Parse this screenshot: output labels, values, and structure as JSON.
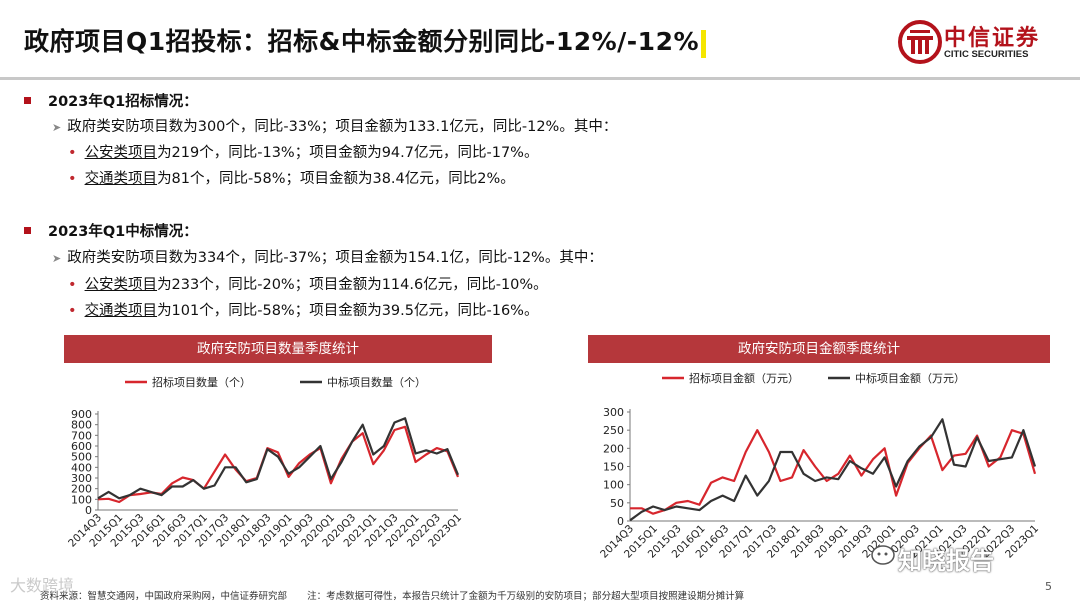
{
  "header": {
    "title": "政府项目Q1招投标：招标&中标金额分别同比-12%/-12%",
    "logo_cn": "中信证券",
    "logo_en": "CITIC SECURITIES",
    "brand_color": "#b3121b"
  },
  "section1": {
    "heading": "2023年Q1招标情况：",
    "main": "政府类安防项目数为300个，同比-33%；项目金额为133.1亿元，同比-12%。其中：",
    "b1_label": "公安类项目",
    "b1_rest": "为219个，同比-13%；项目金额为94.7亿元，同比-17%。",
    "b2_label": "交通类项目",
    "b2_rest": "为81个，同比-58%；项目金额为38.4亿元，同比2%。"
  },
  "section2": {
    "heading": "2023年Q1中标情况：",
    "main": "政府类安防项目数为334个，同比-37%；项目金额为154.1亿，同比-12%。其中：",
    "b1_label": "公安类项目",
    "b1_rest": "为233个，同比-20%；项目金额为114.6亿元，同比-10%。",
    "b2_label": "交通类项目",
    "b2_rest": "为101个，同比-58%；项目金额为39.5亿元，同比-16%。"
  },
  "chart_data": [
    {
      "type": "line",
      "title": "政府安防项目数量季度统计",
      "ylim": [
        0,
        900
      ],
      "yticks": [
        0,
        100,
        200,
        300,
        400,
        500,
        600,
        700,
        800,
        900
      ],
      "x_tick_labels": [
        "2014Q3",
        "2015Q1",
        "2015Q3",
        "2016Q1",
        "2016Q3",
        "2017Q1",
        "2017Q3",
        "2018Q1",
        "2018Q3",
        "2019Q1",
        "2019Q3",
        "2020Q1",
        "2020Q3",
        "2021Q1",
        "2021Q3",
        "2022Q1",
        "2022Q3",
        "2023Q1"
      ],
      "series": [
        {
          "name": "招标项目数量（个）",
          "color": "#d7262d",
          "values": [
            100,
            105,
            75,
            140,
            150,
            165,
            150,
            250,
            305,
            280,
            200,
            360,
            520,
            380,
            270,
            300,
            580,
            540,
            310,
            440,
            520,
            580,
            250,
            480,
            640,
            720,
            430,
            560,
            750,
            780,
            450,
            520,
            580,
            550,
            310
          ]
        },
        {
          "name": "中标项目数量（个）",
          "color": "#333333",
          "values": [
            110,
            170,
            110,
            140,
            200,
            170,
            140,
            220,
            220,
            280,
            200,
            230,
            400,
            400,
            260,
            290,
            570,
            500,
            340,
            400,
            500,
            600,
            290,
            450,
            640,
            800,
            520,
            600,
            820,
            860,
            530,
            560,
            530,
            570,
            330
          ]
        }
      ]
    },
    {
      "type": "line",
      "title": "政府安防项目金额季度统计",
      "ylim": [
        0,
        300
      ],
      "yticks": [
        0,
        50,
        100,
        150,
        200,
        250,
        300
      ],
      "x_tick_labels": [
        "2014Q3",
        "2015Q1",
        "2015Q3",
        "2016Q1",
        "2016Q3",
        "2017Q1",
        "2017Q3",
        "2018Q1",
        "2018Q3",
        "2019Q1",
        "2019Q3",
        "2020Q1",
        "2020Q3",
        "2021Q1",
        "2021Q3",
        "2022Q1",
        "2022Q3",
        "2023Q1"
      ],
      "series": [
        {
          "name": "招标项目金额（万元）",
          "color": "#d7262d",
          "values": [
            35,
            35,
            20,
            30,
            50,
            55,
            45,
            105,
            120,
            110,
            190,
            250,
            190,
            110,
            120,
            195,
            150,
            110,
            130,
            180,
            125,
            170,
            200,
            70,
            160,
            200,
            235,
            140,
            180,
            185,
            235,
            150,
            175,
            250,
            240,
            130
          ]
        },
        {
          "name": "中标项目金额（万元）",
          "color": "#333333",
          "values": [
            2,
            25,
            40,
            30,
            40,
            35,
            30,
            55,
            70,
            55,
            125,
            70,
            110,
            190,
            190,
            130,
            110,
            120,
            115,
            165,
            145,
            130,
            175,
            95,
            165,
            205,
            230,
            280,
            155,
            150,
            230,
            165,
            170,
            175,
            250,
            150
          ]
        }
      ]
    }
  ],
  "footer": {
    "source": "资料来源：智慧交通网，中国政府采购网，中信证券研究部",
    "note": "注：考虑数据可得性，本报告只统计了金额为千万级别的安防项目；部分超大型项目按照建设期分摊计算",
    "page": "5"
  },
  "watermarks": {
    "left": "大数跨境",
    "right": "知晓报告"
  }
}
